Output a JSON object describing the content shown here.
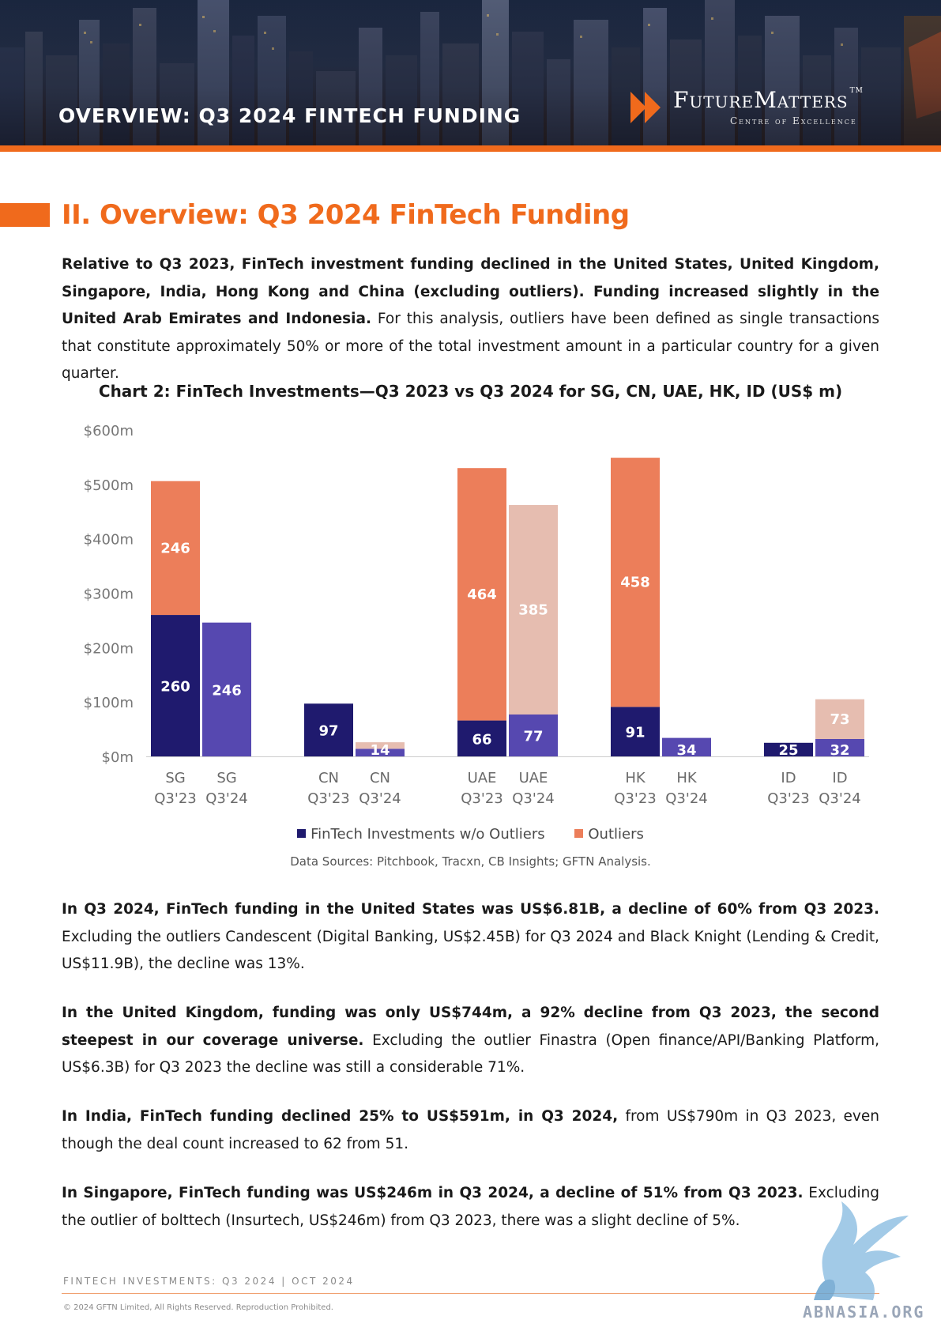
{
  "header": {
    "banner_title": "OVERVIEW: Q3 2024 FINTECH FUNDING",
    "brand_name": "FutureMatters",
    "brand_tm": "TM",
    "brand_tagline": "Centre of Excellence"
  },
  "section": {
    "title": "II. Overview: Q3 2024 FinTech Funding"
  },
  "intro": {
    "bold": "Relative to Q3 2023, FinTech investment funding declined in the United States, United Kingdom, Singapore, India, Hong Kong and China (excluding outliers). Funding increased slightly in the United Arab Emirates and Indonesia.",
    "normal": " For this analysis, outliers have been defined as single transactions that constitute approximately 50% or more of the total investment amount in a particular country for a given quarter."
  },
  "chart_data": {
    "type": "bar",
    "stacked": true,
    "title": "Chart 2: FinTech Investments—Q3 2023 vs Q3 2024 for SG, CN, UAE, HK, ID (US$ m)",
    "xlabel": "",
    "ylabel": "",
    "ylim": [
      0,
      600
    ],
    "y_ticks": [
      "$0m",
      "$100m",
      "$200m",
      "$300m",
      "$400m",
      "$500m",
      "$600m"
    ],
    "groups": [
      {
        "bars": [
          {
            "country": "SG",
            "period": "Q3'23",
            "base": 260,
            "outlier": 246
          },
          {
            "country": "SG",
            "period": "Q3'24",
            "base": 246,
            "outlier": 0
          }
        ]
      },
      {
        "bars": [
          {
            "country": "CN",
            "period": "Q3'23",
            "base": 97,
            "outlier": 0
          },
          {
            "country": "CN",
            "period": "Q3'24",
            "base": 14,
            "outlier": 0,
            "light_outlier": 12
          }
        ]
      },
      {
        "bars": [
          {
            "country": "UAE",
            "period": "Q3'23",
            "base": 66,
            "outlier": 464
          },
          {
            "country": "UAE",
            "period": "Q3'24",
            "base": 77,
            "outlier": 385
          }
        ]
      },
      {
        "bars": [
          {
            "country": "HK",
            "period": "Q3'23",
            "base": 91,
            "outlier": 458
          },
          {
            "country": "HK",
            "period": "Q3'24",
            "base": 34,
            "outlier": 0
          }
        ]
      },
      {
        "bars": [
          {
            "country": "ID",
            "period": "Q3'23",
            "base": 25,
            "outlier": 0
          },
          {
            "country": "ID",
            "period": "Q3'24",
            "base": 32,
            "outlier": 73
          }
        ]
      }
    ],
    "series": [
      {
        "name": "FinTech Investments w/o Outliers",
        "color": "#1f1a6e",
        "color_2024": "#5648b0"
      },
      {
        "name": "Outliers",
        "color": "#ec7e5a",
        "color_2024": "#e6bdb0"
      }
    ],
    "legend_position": "bottom",
    "source": "Data Sources: Pitchbook, Tracxn, CB Insights; GFTN Analysis."
  },
  "paragraphs": [
    {
      "bold": "In Q3 2024, FinTech funding in the United States was US$6.81B, a decline of 60% from Q3 2023.",
      "normal": " Excluding the outliers Candescent (Digital Banking, US$2.45B) for Q3 2024 and Black Knight (Lending & Credit, US$11.9B), the decline was 13%."
    },
    {
      "bold": "In the United Kingdom, funding was only US$744m, a 92% decline from Q3 2023, the second steepest in our coverage universe.",
      "normal": " Excluding the outlier Finastra (Open finance/API/Banking Platform, US$6.3B) for Q3 2023 the decline was still a considerable 71%."
    },
    {
      "bold": "In India, FinTech funding declined 25% to US$591m, in Q3 2024,",
      "normal": " from US$790m in Q3 2023, even though the deal count increased to 62 from 51."
    },
    {
      "bold": "In Singapore,  FinTech funding was US$246m in Q3 2024, a decline of 51% from Q3 2023.",
      "normal": " Excluding the outlier of bolttech (Insurtech, US$246m) from Q3 2023, there was a slight decline of 5%."
    }
  ],
  "footer": {
    "left": "FINTECH INVESTMENTS: Q3 2024   | OCT 2024",
    "copyright": "© 2024 GFTN Limited, All Rights Reserved. Reproduction Prohibited.",
    "watermark": "ABNASIA.ORG"
  },
  "colors": {
    "accent": "#f06a1c",
    "navy": "#1f1a6e",
    "indigo": "#5648b0",
    "coral": "#ec7e5a",
    "peach": "#e6bdb0"
  }
}
